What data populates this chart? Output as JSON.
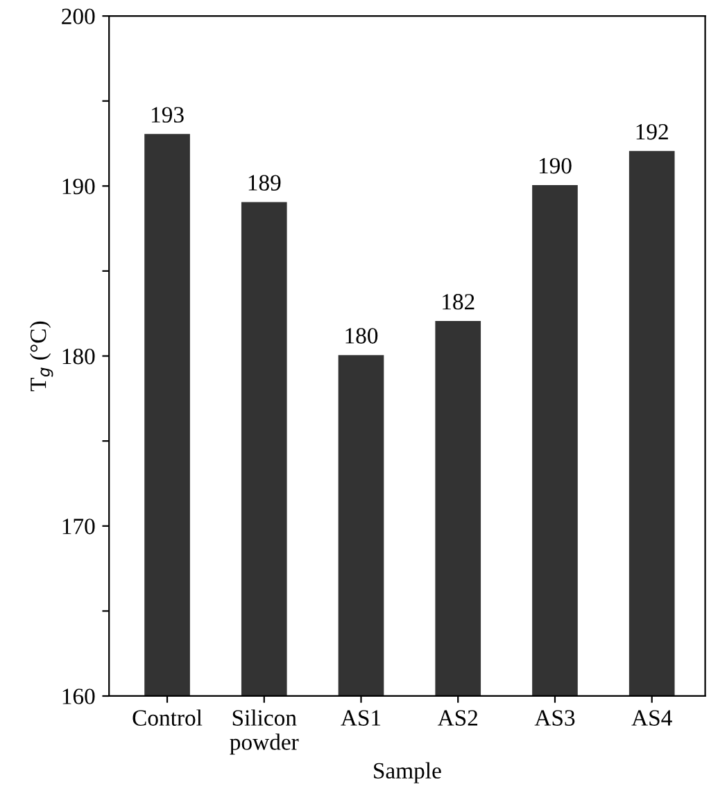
{
  "chart_data": {
    "type": "bar",
    "categories": [
      "Control",
      "Silicon\npowder",
      "AS1",
      "AS2",
      "AS3",
      "AS4"
    ],
    "values": [
      193,
      189,
      180,
      182,
      190,
      192
    ],
    "color": "#333333",
    "xlabel": "Sample",
    "ylabel": "T$_{g}$ (°C)",
    "ylim": [
      160,
      200
    ],
    "yticks": [
      160,
      {
        "value": 165,
        "label": null
      },
      170,
      {
        "value": 175,
        "label": null
      },
      180,
      {
        "value": 185,
        "label": null
      },
      190,
      {
        "value": 195,
        "label": null
      },
      200
    ],
    "data_labels": true,
    "grid": false,
    "legend": false
  }
}
